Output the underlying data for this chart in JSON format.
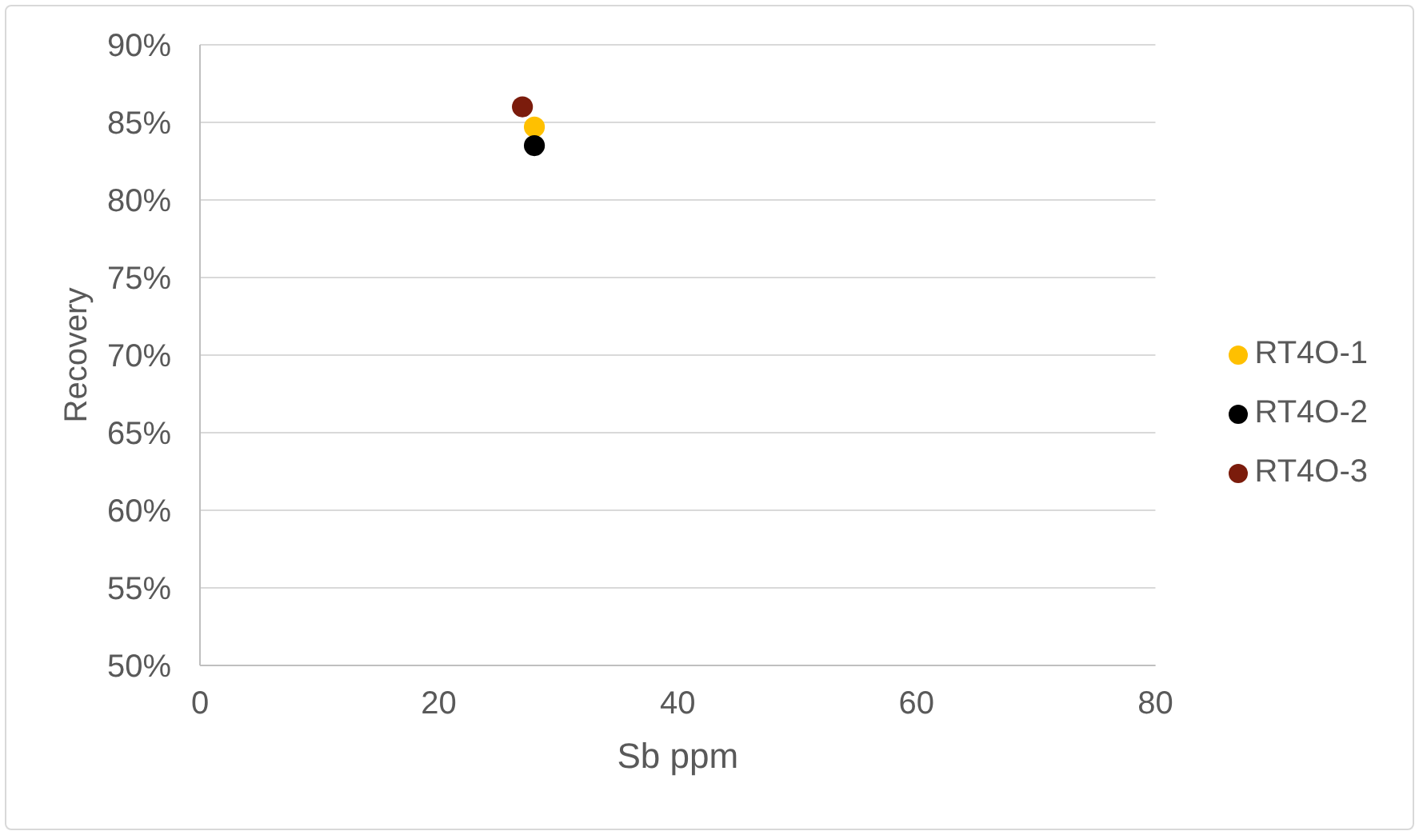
{
  "chart_data": {
    "type": "scatter",
    "xlabel": "Sb ppm",
    "ylabel": "Recovery",
    "xlim": [
      0,
      80
    ],
    "xticks": [
      0,
      20,
      40,
      60,
      80
    ],
    "ylim": [
      50,
      90
    ],
    "yticks": [
      {
        "value": 50,
        "label": "50%"
      },
      {
        "value": 55,
        "label": "55%"
      },
      {
        "value": 60,
        "label": "60%"
      },
      {
        "value": 65,
        "label": "65%"
      },
      {
        "value": 70,
        "label": "70%"
      },
      {
        "value": 75,
        "label": "75%"
      },
      {
        "value": 80,
        "label": "80%"
      },
      {
        "value": 85,
        "label": "85%"
      },
      {
        "value": 90,
        "label": "90%"
      }
    ],
    "grid": "y",
    "legend": "right",
    "marker": "circle",
    "x": [
      27,
      28
    ],
    "series": [
      {
        "name": "RT4O-1",
        "color": "#ffc000",
        "values": [
          null,
          84.7
        ]
      },
      {
        "name": "RT4O-2",
        "color": "#000000",
        "values": [
          null,
          83.5
        ]
      },
      {
        "name": "RT4O-3",
        "color": "#7b1c0c",
        "values": [
          86,
          null
        ]
      }
    ]
  }
}
